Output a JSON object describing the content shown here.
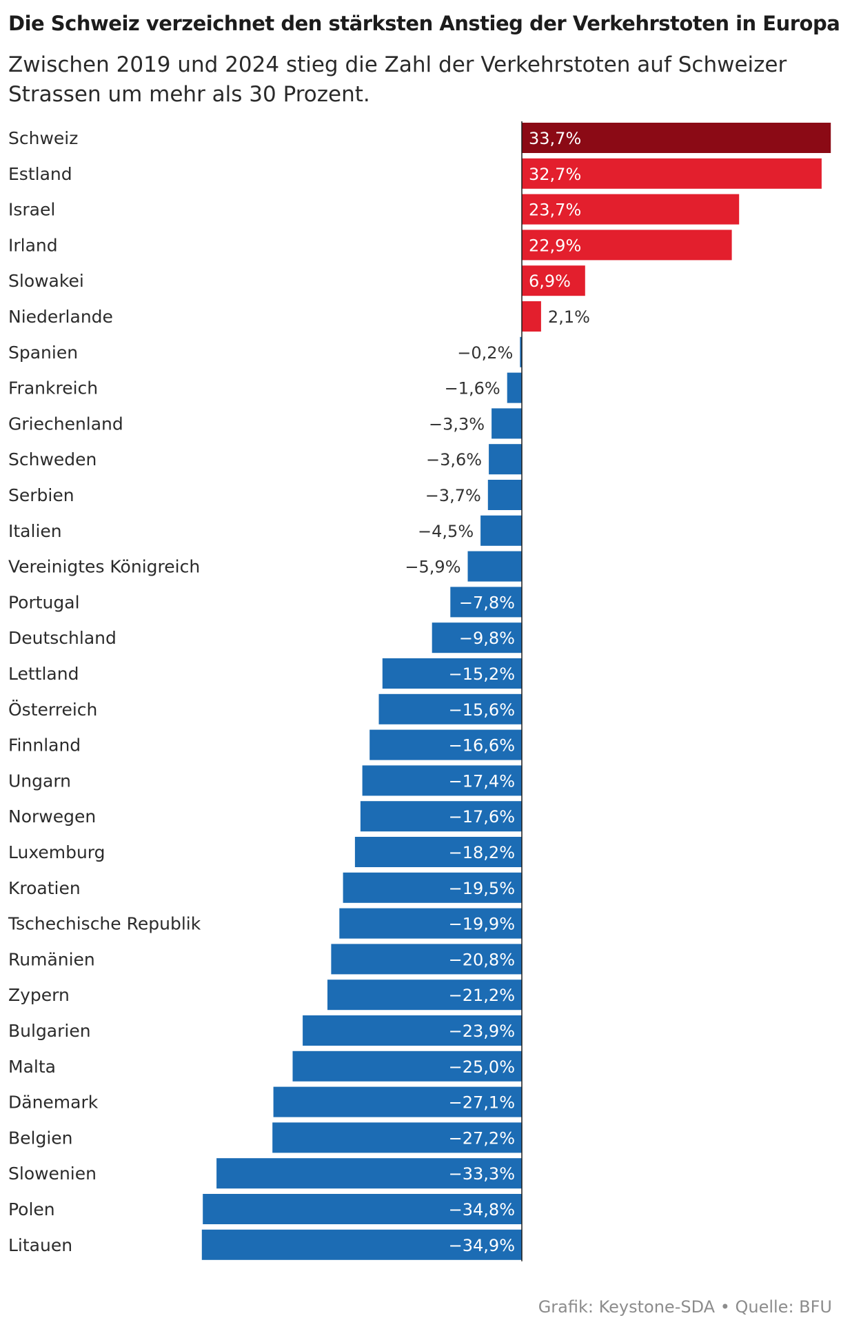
{
  "header": {
    "title": "Die Schweiz verzeichnet den stärksten Anstieg der Verkehrstoten in Europa",
    "subtitle": "Zwischen 2019 und 2024 stieg die Zahl der Verkehrstoten auf Schweizer Strassen um mehr als 30 Prozent."
  },
  "footer": {
    "source": "Grafik: Keystone-SDA • Quelle: BFU"
  },
  "colors": {
    "highlight": "#8b0a15",
    "positive": "#e31f2d",
    "negative": "#1c6cb4",
    "axis": "#1a1a1a",
    "label_text": "#2b2b2b",
    "value_text_inside": "#ffffff",
    "value_text_outside": "#333333"
  },
  "chart_data": {
    "type": "bar",
    "orientation": "horizontal",
    "unit": "%",
    "categories": [
      "Schweiz",
      "Estland",
      "Israel",
      "Irland",
      "Slowakei",
      "Niederlande",
      "Spanien",
      "Frankreich",
      "Griechenland",
      "Schweden",
      "Serbien",
      "Italien",
      "Vereinigtes Königreich",
      "Portugal",
      "Deutschland",
      "Lettland",
      "Österreich",
      "Finnland",
      "Ungarn",
      "Norwegen",
      "Luxemburg",
      "Kroatien",
      "Tschechische Republik",
      "Rumänien",
      "Zypern",
      "Bulgarien",
      "Malta",
      "Dänemark",
      "Belgien",
      "Slowenien",
      "Polen",
      "Litauen"
    ],
    "values": [
      33.7,
      32.7,
      23.7,
      22.9,
      6.9,
      2.1,
      -0.2,
      -1.6,
      -3.3,
      -3.6,
      -3.7,
      -4.5,
      -5.9,
      -7.8,
      -9.8,
      -15.2,
      -15.6,
      -16.6,
      -17.4,
      -17.6,
      -18.2,
      -19.5,
      -19.9,
      -20.8,
      -21.2,
      -23.9,
      -25.0,
      -27.1,
      -27.2,
      -33.3,
      -34.8,
      -34.9
    ],
    "value_labels": [
      "33,7%",
      "32,7%",
      "23,7%",
      "22,9%",
      "6,9%",
      "2,1%",
      "−0,2%",
      "−1,6%",
      "−3,3%",
      "−3,6%",
      "−3,7%",
      "−4,5%",
      "−5,9%",
      "−7,8%",
      "−9,8%",
      "−15,2%",
      "−15,6%",
      "−16,6%",
      "−17,4%",
      "−17,6%",
      "−18,2%",
      "−19,5%",
      "−19,9%",
      "−20,8%",
      "−21,2%",
      "−23,9%",
      "−25,0%",
      "−27,1%",
      "−27,2%",
      "−33,3%",
      "−34,8%",
      "−34,9%"
    ],
    "highlighted_category": "Schweiz",
    "xlim": [
      -34.9,
      33.7
    ],
    "grid": false,
    "legend": "none"
  }
}
